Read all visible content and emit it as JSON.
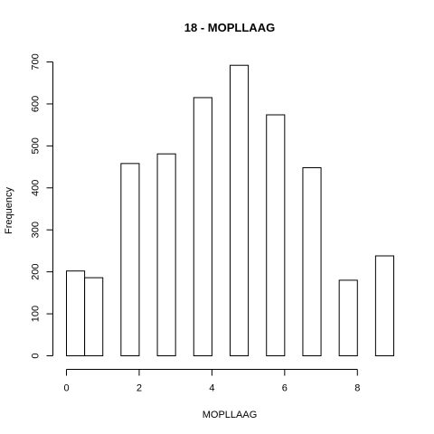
{
  "chart_data": {
    "type": "bar",
    "title": "18 - MOPLLAAG",
    "xlabel": "MOPLLAAG",
    "ylabel": "Frequency",
    "bins": [
      {
        "start": 0.0,
        "end": 0.5,
        "count": 202
      },
      {
        "start": 0.5,
        "end": 1.0,
        "count": 186
      },
      {
        "start": 1.0,
        "end": 1.5,
        "count": 0
      },
      {
        "start": 1.5,
        "end": 2.0,
        "count": 458
      },
      {
        "start": 2.0,
        "end": 2.5,
        "count": 0
      },
      {
        "start": 2.5,
        "end": 3.0,
        "count": 481
      },
      {
        "start": 3.0,
        "end": 3.5,
        "count": 0
      },
      {
        "start": 3.5,
        "end": 4.0,
        "count": 615
      },
      {
        "start": 4.0,
        "end": 4.5,
        "count": 0
      },
      {
        "start": 4.5,
        "end": 5.0,
        "count": 692
      },
      {
        "start": 5.0,
        "end": 5.5,
        "count": 0
      },
      {
        "start": 5.5,
        "end": 6.0,
        "count": 574
      },
      {
        "start": 6.0,
        "end": 6.5,
        "count": 0
      },
      {
        "start": 6.5,
        "end": 7.0,
        "count": 448
      },
      {
        "start": 7.0,
        "end": 7.5,
        "count": 0
      },
      {
        "start": 7.5,
        "end": 8.0,
        "count": 180
      },
      {
        "start": 8.0,
        "end": 8.5,
        "count": 0
      },
      {
        "start": 8.5,
        "end": 9.0,
        "count": 238
      }
    ],
    "xlim": [
      0,
      9
    ],
    "ylim": [
      0,
      700
    ],
    "x_ticks": [
      0,
      2,
      4,
      6,
      8
    ],
    "y_ticks": [
      0,
      100,
      200,
      300,
      400,
      500,
      600,
      700
    ],
    "grid": false,
    "legend": "none"
  }
}
